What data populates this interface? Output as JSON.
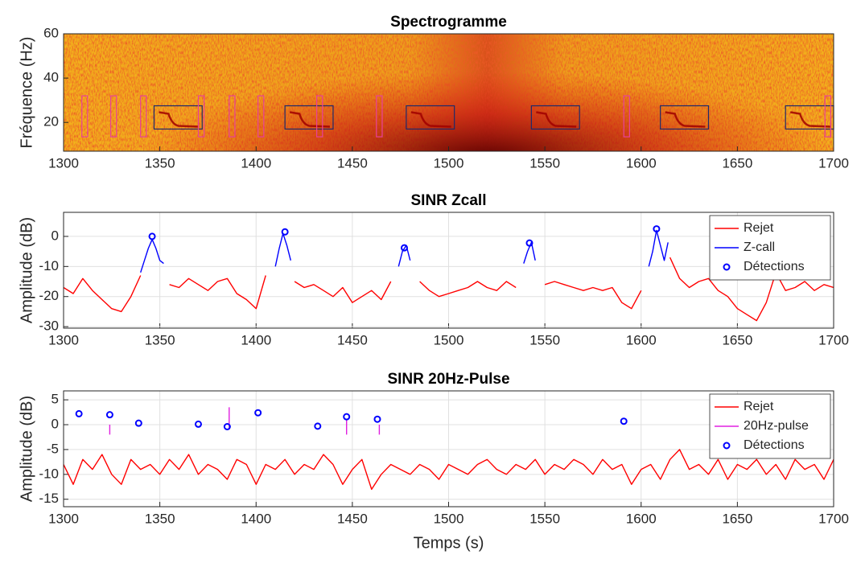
{
  "chart_data": [
    {
      "type": "spectrogram",
      "title": "Spectrogramme",
      "ylabel": "Fréquence (Hz)",
      "xlim": [
        1300,
        1700
      ],
      "xticks": [
        1300,
        1350,
        1400,
        1450,
        1500,
        1550,
        1600,
        1650,
        1700
      ],
      "ylim": [
        7,
        60
      ],
      "yticks": [
        20,
        40,
        60
      ],
      "grid": false,
      "box_groups": [
        {
          "color": "#1f2a6b",
          "boxes": [
            {
              "x": [
                1347,
                1372
              ],
              "y": [
                17,
                27.5
              ]
            },
            {
              "x": [
                1415,
                1440
              ],
              "y": [
                17,
                27.5
              ]
            },
            {
              "x": [
                1478,
                1503
              ],
              "y": [
                17,
                27.5
              ]
            },
            {
              "x": [
                1543,
                1568
              ],
              "y": [
                17,
                27.5
              ]
            },
            {
              "x": [
                1610,
                1635
              ],
              "y": [
                17,
                27.5
              ]
            },
            {
              "x": [
                1675,
                1700
              ],
              "y": [
                17,
                27.5
              ]
            }
          ]
        },
        {
          "color": "#e8409a",
          "boxes": [
            {
              "x": [
                1309.5,
                1312.5
              ],
              "y": [
                13.5,
                32
              ]
            },
            {
              "x": [
                1324.5,
                1327.5
              ],
              "y": [
                13.5,
                32
              ]
            },
            {
              "x": [
                1340,
                1343
              ],
              "y": [
                13.5,
                32
              ]
            },
            {
              "x": [
                1370,
                1373
              ],
              "y": [
                13.5,
                32
              ]
            },
            {
              "x": [
                1386,
                1389
              ],
              "y": [
                13.5,
                32
              ]
            },
            {
              "x": [
                1401,
                1404
              ],
              "y": [
                13.5,
                32
              ]
            },
            {
              "x": [
                1431.5,
                1434.5
              ],
              "y": [
                13.5,
                32
              ]
            },
            {
              "x": [
                1462.5,
                1465.5
              ],
              "y": [
                13.5,
                32
              ]
            },
            {
              "x": [
                1591,
                1594
              ],
              "y": [
                13.5,
                32
              ]
            },
            {
              "x": [
                1695.5,
                1698.5
              ],
              "y": [
                13.5,
                32
              ]
            }
          ]
        }
      ]
    },
    {
      "type": "line",
      "title": "SINR Zcall",
      "ylabel": "Amplitude (dB)",
      "xlim": [
        1300,
        1700
      ],
      "xticks": [
        1300,
        1350,
        1400,
        1450,
        1500,
        1550,
        1600,
        1650,
        1700
      ],
      "ylim": [
        -30.5,
        8
      ],
      "yticks": [
        -30,
        -20,
        -10,
        0
      ],
      "grid": true,
      "legend": "upper right",
      "series": [
        {
          "name": "Rejet",
          "color": "#ff0000",
          "x": [
            1300,
            1305,
            1310,
            1315,
            1320,
            1325,
            1330,
            1335,
            1340,
            1345,
            1350,
            1355,
            1360,
            1365,
            1370,
            1375,
            1380,
            1385,
            1390,
            1395,
            1400,
            1405,
            1410,
            1415,
            1420,
            1425,
            1430,
            1435,
            1440,
            1445,
            1450,
            1455,
            1460,
            1465,
            1470,
            1475,
            1480,
            1485,
            1490,
            1495,
            1500,
            1505,
            1510,
            1515,
            1520,
            1525,
            1530,
            1535,
            1540,
            1545,
            1550,
            1555,
            1560,
            1565,
            1570,
            1575,
            1580,
            1585,
            1590,
            1595,
            1600,
            1605,
            1610,
            1615,
            1620,
            1625,
            1630,
            1635,
            1640,
            1645,
            1650,
            1655,
            1660,
            1665,
            1670,
            1675,
            1680,
            1685,
            1690,
            1695,
            1700
          ],
          "values": [
            -17,
            -19,
            -14,
            -18,
            -21,
            -24,
            -25,
            -20,
            -13,
            null,
            null,
            -16,
            -17,
            -14,
            -16,
            -18,
            -15,
            -14,
            -19,
            -21,
            -24,
            -13,
            null,
            null,
            -15,
            -17,
            -16,
            -18,
            -20,
            -17,
            -22,
            -20,
            -18,
            -21,
            -15,
            null,
            null,
            -15,
            -18,
            -20,
            -19,
            -18,
            -17,
            -15,
            -17,
            -18,
            -15,
            -17,
            null,
            null,
            -16,
            -15,
            -16,
            -17,
            -18,
            -17,
            -18,
            -17,
            -22,
            -24,
            -18,
            null,
            null,
            -7,
            -14,
            -17,
            -15,
            -14,
            -18,
            -20,
            -24,
            -26,
            -28,
            -22,
            -12,
            -18,
            -17,
            -15,
            -18,
            -16,
            -17
          ]
        },
        {
          "name": "Z-call",
          "color": "#0000ff",
          "x": [
            1340,
            1342,
            1344,
            1346,
            1348,
            1350,
            1352,
            null,
            1410,
            1412,
            1414,
            1416,
            1418,
            null,
            1474,
            1476,
            1478,
            1480,
            null,
            1539,
            1541,
            1543,
            1545,
            null,
            1604,
            1606,
            1608,
            1610,
            1612,
            1614
          ],
          "values": [
            -12,
            -8,
            -4,
            -1,
            -4,
            -8,
            -9,
            null,
            -10,
            -4,
            1,
            -3,
            -8,
            null,
            -10,
            -5,
            -3,
            -8,
            null,
            -9,
            -5,
            -2,
            -8,
            null,
            -10,
            -5,
            2,
            -3,
            -8,
            -2
          ]
        },
        {
          "name": "Détections",
          "color": "#0000ff",
          "marker": "o",
          "x": [
            1346,
            1415,
            1477,
            1542,
            1608
          ],
          "values": [
            0,
            1.5,
            -3.8,
            -2.2,
            2.5
          ]
        }
      ]
    },
    {
      "type": "line",
      "title": "SINR 20Hz-Pulse",
      "ylabel": "Amplitude (dB)",
      "xlabel": "Temps (s)",
      "xlim": [
        1300,
        1700
      ],
      "xticks": [
        1300,
        1350,
        1400,
        1450,
        1500,
        1550,
        1600,
        1650,
        1700
      ],
      "ylim": [
        -16.5,
        6.8
      ],
      "yticks": [
        -15,
        -10,
        -5,
        0,
        5
      ],
      "grid": true,
      "legend": "upper right",
      "series": [
        {
          "name": "Rejet",
          "color": "#ff0000",
          "x": [
            1300,
            1305,
            1310,
            1315,
            1320,
            1325,
            1330,
            1335,
            1340,
            1345,
            1350,
            1355,
            1360,
            1365,
            1370,
            1375,
            1380,
            1385,
            1390,
            1395,
            1400,
            1405,
            1410,
            1415,
            1420,
            1425,
            1430,
            1435,
            1440,
            1445,
            1450,
            1455,
            1460,
            1465,
            1470,
            1475,
            1480,
            1485,
            1490,
            1495,
            1500,
            1505,
            1510,
            1515,
            1520,
            1525,
            1530,
            1535,
            1540,
            1545,
            1550,
            1555,
            1560,
            1565,
            1570,
            1575,
            1580,
            1585,
            1590,
            1595,
            1600,
            1605,
            1610,
            1615,
            1620,
            1625,
            1630,
            1635,
            1640,
            1645,
            1650,
            1655,
            1660,
            1665,
            1670,
            1675,
            1680,
            1685,
            1690,
            1695,
            1700
          ],
          "values": [
            -8,
            -12,
            -7,
            -9,
            -6,
            -10,
            -12,
            -7,
            -9,
            -8,
            -10,
            -7,
            -9,
            -6,
            -10,
            -8,
            -9,
            -11,
            -7,
            -8,
            -12,
            -8,
            -9,
            -7,
            -10,
            -8,
            -9,
            -6,
            -8,
            -12,
            -9,
            -7,
            -13,
            -10,
            -8,
            -9,
            -10,
            -8,
            -9,
            -11,
            -8,
            -9,
            -10,
            -8,
            -7,
            -9,
            -10,
            -8,
            -9,
            -7,
            -10,
            -8,
            -9,
            -7,
            -8,
            -10,
            -7,
            -9,
            -8,
            -12,
            -9,
            -8,
            -11,
            -7,
            -5,
            -9,
            -8,
            -10,
            -7,
            -11,
            -8,
            -9,
            -7,
            -10,
            -8,
            -11,
            -7,
            -9,
            -8,
            -11,
            -7
          ]
        },
        {
          "name": "20Hz-pulse",
          "color": "#e020e0",
          "x": [
            1324,
            1324,
            null,
            1386,
            1386,
            null,
            1447,
            1447,
            null,
            1464,
            1464
          ],
          "values": [
            0,
            -2,
            null,
            3.5,
            -1,
            null,
            1,
            -2,
            null,
            0,
            -2
          ]
        },
        {
          "name": "Détections",
          "color": "#0000ff",
          "marker": "o",
          "x": [
            1308,
            1324,
            1339,
            1370,
            1385,
            1401,
            1432,
            1447,
            1463,
            1591
          ],
          "values": [
            2.2,
            2,
            0.3,
            0.1,
            -0.4,
            2.4,
            -0.3,
            1.6,
            1.1,
            0.7
          ]
        }
      ]
    }
  ]
}
